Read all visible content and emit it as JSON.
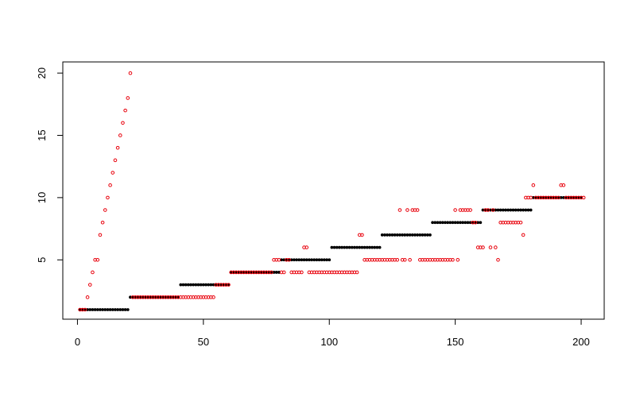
{
  "chart_data": {
    "type": "scatter",
    "title": "",
    "xlabel": "",
    "ylabel": "",
    "xlim": [
      1,
      200
    ],
    "ylim": [
      1,
      20
    ],
    "x_ticks": [
      "0",
      "50",
      "100",
      "150",
      "200"
    ],
    "y_ticks": [
      "5",
      "10",
      "15",
      "20"
    ],
    "grid": false,
    "legend": "none",
    "series": [
      {
        "marker": "filled-circle",
        "color": "#000000",
        "values": [
          1,
          1,
          1,
          1,
          1,
          1,
          1,
          1,
          1,
          1,
          1,
          1,
          1,
          1,
          1,
          1,
          1,
          1,
          1,
          1,
          2,
          2,
          2,
          2,
          2,
          2,
          2,
          2,
          2,
          2,
          2,
          2,
          2,
          2,
          2,
          2,
          2,
          2,
          2,
          2,
          3,
          3,
          3,
          3,
          3,
          3,
          3,
          3,
          3,
          3,
          3,
          3,
          3,
          3,
          3,
          3,
          3,
          3,
          3,
          3,
          4,
          4,
          4,
          4,
          4,
          4,
          4,
          4,
          4,
          4,
          4,
          4,
          4,
          4,
          4,
          4,
          4,
          4,
          4,
          4,
          5,
          5,
          5,
          5,
          5,
          5,
          5,
          5,
          5,
          5,
          5,
          5,
          5,
          5,
          5,
          5,
          5,
          5,
          5,
          5,
          6,
          6,
          6,
          6,
          6,
          6,
          6,
          6,
          6,
          6,
          6,
          6,
          6,
          6,
          6,
          6,
          6,
          6,
          6,
          6,
          7,
          7,
          7,
          7,
          7,
          7,
          7,
          7,
          7,
          7,
          7,
          7,
          7,
          7,
          7,
          7,
          7,
          7,
          7,
          7,
          8,
          8,
          8,
          8,
          8,
          8,
          8,
          8,
          8,
          8,
          8,
          8,
          8,
          8,
          8,
          8,
          8,
          8,
          8,
          8,
          9,
          9,
          9,
          9,
          9,
          9,
          9,
          9,
          9,
          9,
          9,
          9,
          9,
          9,
          9,
          9,
          9,
          9,
          9,
          9,
          10,
          10,
          10,
          10,
          10,
          10,
          10,
          10,
          10,
          10,
          10,
          10,
          10,
          10,
          10,
          10,
          10,
          10,
          10,
          10
        ]
      },
      {
        "marker": "open-circle",
        "color": "#e8000b",
        "values": [
          1,
          1,
          1,
          2,
          3,
          4,
          5,
          5,
          7,
          8,
          9,
          10,
          11,
          12,
          13,
          14,
          15,
          16,
          17,
          18,
          20,
          2,
          2,
          2,
          2,
          2,
          2,
          2,
          2,
          2,
          2,
          2,
          2,
          2,
          2,
          2,
          2,
          2,
          2,
          2,
          2,
          2,
          2,
          2,
          2,
          2,
          2,
          2,
          2,
          2,
          2,
          2,
          2,
          2,
          3,
          3,
          3,
          3,
          3,
          3,
          4,
          4,
          4,
          4,
          4,
          4,
          4,
          4,
          4,
          4,
          4,
          4,
          4,
          4,
          4,
          4,
          4,
          5,
          5,
          5,
          4,
          4,
          5,
          5,
          4,
          4,
          4,
          4,
          4,
          6,
          6,
          4,
          4,
          4,
          4,
          4,
          4,
          4,
          4,
          4,
          4,
          4,
          4,
          4,
          4,
          4,
          4,
          4,
          4,
          4,
          4,
          7,
          7,
          5,
          5,
          5,
          5,
          5,
          5,
          5,
          5,
          5,
          5,
          5,
          5,
          5,
          5,
          9,
          5,
          5,
          9,
          5,
          9,
          9,
          9,
          5,
          5,
          5,
          5,
          5,
          5,
          5,
          5,
          5,
          5,
          5,
          5,
          5,
          5,
          9,
          5,
          9,
          9,
          9,
          9,
          9,
          8,
          8,
          6,
          6,
          6,
          9,
          9,
          6,
          9,
          6,
          5,
          8,
          8,
          8,
          8,
          8,
          8,
          8,
          8,
          8,
          7,
          10,
          10,
          10,
          11,
          10,
          10,
          10,
          10,
          10,
          10,
          10,
          10,
          10,
          10,
          11,
          11,
          10,
          10,
          10,
          10,
          10,
          10,
          10,
          10
        ]
      }
    ]
  }
}
